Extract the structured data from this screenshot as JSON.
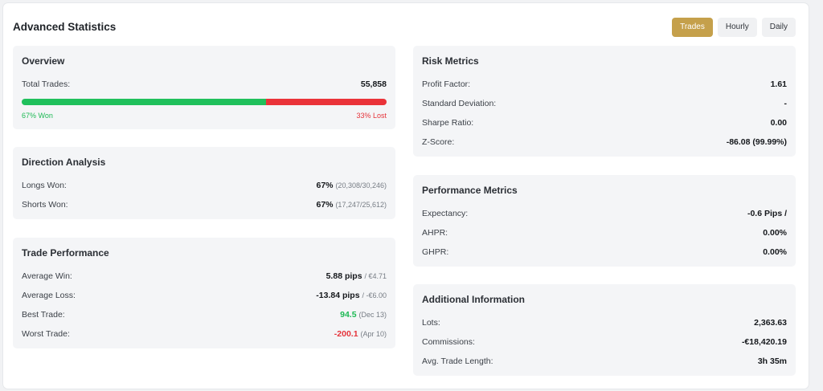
{
  "header": {
    "title": "Advanced Statistics",
    "tabs": [
      {
        "label": "Trades",
        "active": true
      },
      {
        "label": "Hourly",
        "active": false
      },
      {
        "label": "Daily",
        "active": false
      }
    ]
  },
  "overview": {
    "title": "Overview",
    "total_trades_label": "Total Trades:",
    "total_trades_value": "55,858",
    "won_fraction": 0.67,
    "won_label": "67% Won",
    "lost_label": "33% Lost"
  },
  "direction": {
    "title": "Direction Analysis",
    "rows": [
      {
        "label": "Longs Won:",
        "value": "67%",
        "detail": "(20,308/30,246)"
      },
      {
        "label": "Shorts Won:",
        "value": "67%",
        "detail": "(17,247/25,612)"
      }
    ]
  },
  "trade_performance": {
    "title": "Trade Performance",
    "rows": [
      {
        "label": "Average Win:",
        "value": "5.88 pips",
        "detail": "/ €4.71"
      },
      {
        "label": "Average Loss:",
        "value": "-13.84 pips",
        "detail": "/ -€6.00"
      },
      {
        "label": "Best Trade:",
        "value": "94.5",
        "detail": "(Dec 13)"
      },
      {
        "label": "Worst Trade:",
        "value": "-200.1",
        "detail": "(Apr 10)"
      }
    ]
  },
  "risk": {
    "title": "Risk Metrics",
    "rows": [
      {
        "label": "Profit Factor:",
        "value": "1.61"
      },
      {
        "label": "Standard Deviation:",
        "value": "-"
      },
      {
        "label": "Sharpe Ratio:",
        "value": "0.00"
      },
      {
        "label": "Z-Score:",
        "value": "-86.08 (99.99%)"
      }
    ]
  },
  "performance_metrics": {
    "title": "Performance Metrics",
    "rows": [
      {
        "label": "Expectancy:",
        "value": "-0.6 Pips /"
      },
      {
        "label": "AHPR:",
        "value": "0.00%"
      },
      {
        "label": "GHPR:",
        "value": "0.00%"
      }
    ]
  },
  "additional": {
    "title": "Additional Information",
    "rows": [
      {
        "label": "Lots:",
        "value": "2,363.63"
      },
      {
        "label": "Commissions:",
        "value": "-€18,420.19"
      },
      {
        "label": "Avg. Trade Length:",
        "value": "3h 35m"
      }
    ]
  },
  "colors": {
    "accent": "#c5a04b",
    "won": "#20c05c",
    "lost": "#ea3339"
  }
}
